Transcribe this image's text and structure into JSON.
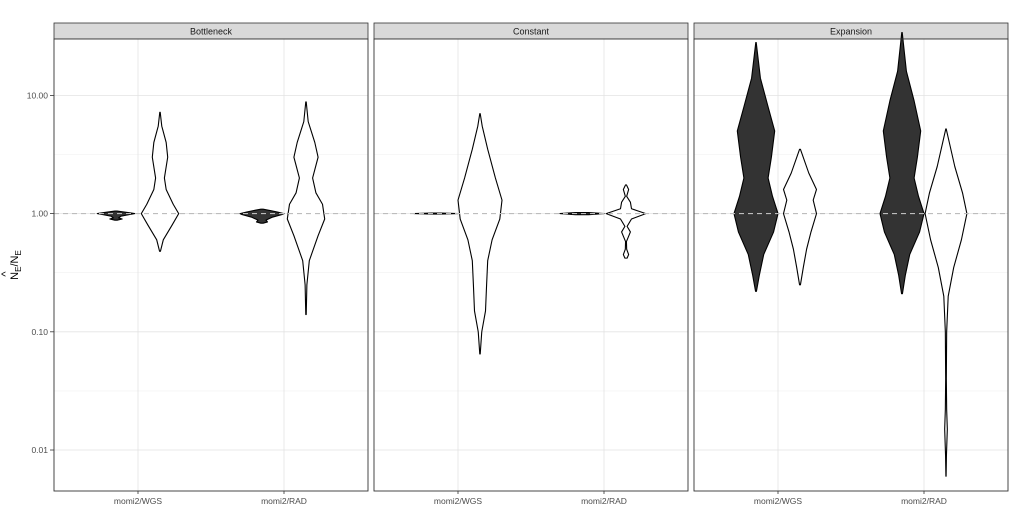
{
  "chart_data": {
    "type": "violin",
    "title": "",
    "ylabel": "N̂_E/N_E",
    "ylabel_main": "N",
    "ylabel_hat": "^",
    "ylabel_sub": "E",
    "ylabel_sep": "/",
    "y_scale": "log10",
    "ylim": [
      0.0045,
      30
    ],
    "yticks": [
      0.01,
      0.1,
      1,
      10
    ],
    "ytick_labels": [
      "0.01",
      "0.10",
      "1.00",
      "10.00"
    ],
    "reference_line": 1.0,
    "grid": true,
    "colors": {
      "filled": "#333333",
      "open": "#ffffff",
      "outline": "#000000",
      "ref_line": "#bdbdbd",
      "strip_bg": "#d9d9d9"
    },
    "categories": [
      "momi2/WGS",
      "momi2/RAD"
    ],
    "panels": [
      {
        "name": "Bottleneck",
        "violins": [
          {
            "category": "momi2/WGS",
            "offset": -0.23,
            "fill": "filled",
            "min": 0.88,
            "max": 1.05,
            "profile": [
              [
                0.88,
                0.05
              ],
              [
                0.9,
                0.28
              ],
              [
                0.92,
                0.12
              ],
              [
                0.95,
                0.22
              ],
              [
                0.98,
                0.6
              ],
              [
                1.0,
                0.85
              ],
              [
                1.02,
                0.55
              ],
              [
                1.05,
                0.05
              ]
            ]
          },
          {
            "category": "momi2/WGS",
            "offset": 0.23,
            "fill": "open",
            "min": 0.48,
            "max": 7.2,
            "profile": [
              [
                0.48,
                0.02
              ],
              [
                0.6,
                0.15
              ],
              [
                0.8,
                0.55
              ],
              [
                1.0,
                0.85
              ],
              [
                1.2,
                0.6
              ],
              [
                1.6,
                0.28
              ],
              [
                2.0,
                0.2
              ],
              [
                3.0,
                0.35
              ],
              [
                4.0,
                0.28
              ],
              [
                5.5,
                0.08
              ],
              [
                7.2,
                0.01
              ]
            ]
          },
          {
            "category": "momi2/RAD",
            "offset": -0.23,
            "fill": "filled",
            "min": 0.83,
            "max": 1.09,
            "profile": [
              [
                0.83,
                0.05
              ],
              [
                0.85,
                0.25
              ],
              [
                0.88,
                0.18
              ],
              [
                0.93,
                0.45
              ],
              [
                0.98,
                0.9
              ],
              [
                1.0,
                1.0
              ],
              [
                1.03,
                0.7
              ],
              [
                1.06,
                0.4
              ],
              [
                1.09,
                0.05
              ]
            ]
          },
          {
            "category": "momi2/RAD",
            "offset": 0.23,
            "fill": "open",
            "min": 0.14,
            "max": 8.8,
            "profile": [
              [
                0.14,
                0.01
              ],
              [
                0.25,
                0.04
              ],
              [
                0.4,
                0.15
              ],
              [
                0.65,
                0.55
              ],
              [
                0.9,
                0.85
              ],
              [
                1.2,
                0.75
              ],
              [
                1.5,
                0.45
              ],
              [
                2.0,
                0.3
              ],
              [
                3.0,
                0.55
              ],
              [
                4.0,
                0.4
              ],
              [
                6.0,
                0.1
              ],
              [
                8.8,
                0.01
              ]
            ]
          }
        ]
      },
      {
        "name": "Constant",
        "violins": [
          {
            "category": "momi2/WGS",
            "offset": -0.23,
            "fill": "filled",
            "min": 0.99,
            "max": 1.01,
            "profile": [
              [
                0.99,
                0.2
              ],
              [
                1.0,
                1.0
              ],
              [
                1.01,
                0.2
              ]
            ]
          },
          {
            "category": "momi2/WGS",
            "offset": 0.23,
            "fill": "open",
            "min": 0.065,
            "max": 7.0,
            "profile": [
              [
                0.065,
                0.01
              ],
              [
                0.1,
                0.08
              ],
              [
                0.15,
                0.25
              ],
              [
                0.25,
                0.3
              ],
              [
                0.4,
                0.35
              ],
              [
                0.6,
                0.55
              ],
              [
                0.9,
                0.9
              ],
              [
                1.3,
                1.0
              ],
              [
                2.0,
                0.7
              ],
              [
                3.5,
                0.35
              ],
              [
                5.5,
                0.1
              ],
              [
                7.0,
                0.01
              ]
            ]
          },
          {
            "category": "momi2/RAD",
            "offset": -0.23,
            "fill": "filled",
            "min": 0.98,
            "max": 1.02,
            "profile": [
              [
                0.98,
                0.3
              ],
              [
                1.0,
                1.0
              ],
              [
                1.02,
                0.3
              ]
            ]
          },
          {
            "category": "momi2/RAD",
            "offset": 0.23,
            "fill": "open",
            "min": 0.42,
            "max": 1.75,
            "profile": [
              [
                0.42,
                0.05
              ],
              [
                0.45,
                0.12
              ],
              [
                0.5,
                0.03
              ],
              [
                0.58,
                0.02
              ],
              [
                0.7,
                0.2
              ],
              [
                0.78,
                0.05
              ],
              [
                0.9,
                0.25
              ],
              [
                1.0,
                0.9
              ],
              [
                1.1,
                0.25
              ],
              [
                1.25,
                0.2
              ],
              [
                1.4,
                0.03
              ],
              [
                1.6,
                0.12
              ],
              [
                1.75,
                0.02
              ]
            ]
          }
        ]
      },
      {
        "name": "Expansion",
        "violins": [
          {
            "category": "momi2/WGS",
            "offset": -0.23,
            "fill": "filled",
            "min": 0.22,
            "max": 28,
            "profile": [
              [
                0.22,
                0.02
              ],
              [
                0.3,
                0.15
              ],
              [
                0.45,
                0.35
              ],
              [
                0.7,
                0.8
              ],
              [
                1.0,
                1.0
              ],
              [
                1.4,
                0.75
              ],
              [
                2.0,
                0.55
              ],
              [
                3.0,
                0.7
              ],
              [
                5.0,
                0.85
              ],
              [
                8.0,
                0.55
              ],
              [
                14.0,
                0.2
              ],
              [
                28.0,
                0.01
              ]
            ]
          },
          {
            "category": "momi2/WGS",
            "offset": 0.23,
            "fill": "open",
            "min": 0.25,
            "max": 3.5,
            "profile": [
              [
                0.25,
                0.02
              ],
              [
                0.35,
                0.15
              ],
              [
                0.5,
                0.3
              ],
              [
                0.7,
                0.5
              ],
              [
                1.0,
                0.75
              ],
              [
                1.3,
                0.6
              ],
              [
                1.6,
                0.75
              ],
              [
                2.2,
                0.4
              ],
              [
                3.5,
                0.02
              ]
            ]
          },
          {
            "category": "momi2/RAD",
            "offset": -0.23,
            "fill": "filled",
            "min": 0.21,
            "max": 34,
            "profile": [
              [
                0.21,
                0.02
              ],
              [
                0.3,
                0.15
              ],
              [
                0.45,
                0.35
              ],
              [
                0.7,
                0.8
              ],
              [
                1.0,
                1.0
              ],
              [
                1.4,
                0.75
              ],
              [
                2.0,
                0.55
              ],
              [
                3.0,
                0.7
              ],
              [
                5.0,
                0.85
              ],
              [
                9.0,
                0.55
              ],
              [
                16.0,
                0.2
              ],
              [
                34.0,
                0.01
              ]
            ]
          },
          {
            "category": "momi2/RAD",
            "offset": 0.23,
            "fill": "open",
            "min": 0.006,
            "max": 5.2,
            "profile": [
              [
                0.006,
                0.005
              ],
              [
                0.009,
                0.02
              ],
              [
                0.015,
                0.06
              ],
              [
                0.022,
                0.03
              ],
              [
                0.04,
                0.015
              ],
              [
                0.1,
                0.03
              ],
              [
                0.2,
                0.1
              ],
              [
                0.35,
                0.35
              ],
              [
                0.6,
                0.7
              ],
              [
                1.0,
                0.95
              ],
              [
                1.5,
                0.75
              ],
              [
                2.5,
                0.4
              ],
              [
                4.0,
                0.15
              ],
              [
                5.2,
                0.01
              ]
            ]
          }
        ]
      }
    ]
  }
}
